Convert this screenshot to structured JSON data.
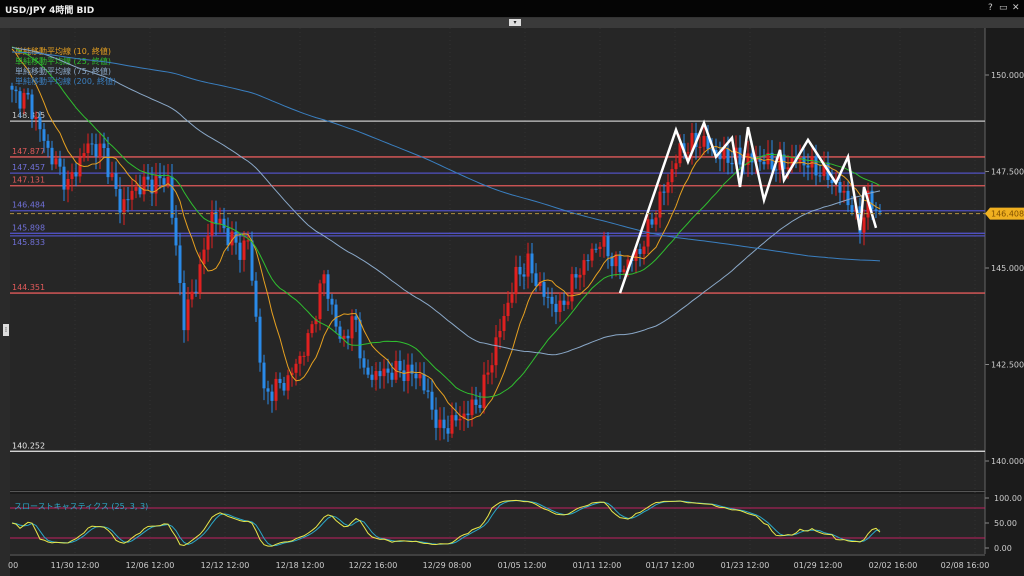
{
  "window": {
    "title": "USD/JPY 4時間 BID",
    "help": "?",
    "maximize": "▭",
    "close": "✕",
    "collapse": "▾",
    "handle": "⁞"
  },
  "legend": [
    {
      "label": "単純移動平均線 (10, 終値)",
      "period": 10,
      "color": "#e6a020"
    },
    {
      "label": "単純移動平均線 (25, 終値)",
      "period": 25,
      "color": "#2fbf2f"
    },
    {
      "label": "単純移動平均線 (75, 終値)",
      "period": 75,
      "color": "#8aa8c8"
    },
    {
      "label": "単純移動平均線 (200, 終値)",
      "period": 200,
      "color": "#3a7fc0"
    }
  ],
  "chart_data": {
    "type": "candlestick",
    "title": "USD/JPY 4時間 BID",
    "ylim": [
      139.5,
      151.2
    ],
    "y_ticks": [
      "150.000",
      "147.500",
      "145.000",
      "142.500",
      "140.000"
    ],
    "x_ticks": [
      "00",
      "11/30 12:00",
      "12/06 12:00",
      "12/12 12:00",
      "12/18 12:00",
      "12/22 16:00",
      "12/29 08:00",
      "01/05 12:00",
      "01/11 12:00",
      "01/17 12:00",
      "01/23 12:00",
      "01/29 12:00",
      "02/02 16:00",
      "02/08 16:00"
    ],
    "current_price": "146.408",
    "price_path_bar_price": [
      [
        0,
        149.5
      ],
      [
        4,
        149.35
      ],
      [
        9,
        148.05
      ],
      [
        14,
        147.15
      ],
      [
        19,
        148.2
      ],
      [
        23,
        148.0
      ],
      [
        27,
        146.6
      ],
      [
        32,
        147.15
      ],
      [
        39,
        147.3
      ],
      [
        43,
        143.65
      ],
      [
        47,
        144.95
      ],
      [
        50,
        146.4
      ],
      [
        57,
        145.45
      ],
      [
        59,
        145.7
      ],
      [
        63,
        141.7
      ],
      [
        69,
        142.1
      ],
      [
        74,
        143.1
      ],
      [
        78,
        144.8
      ],
      [
        82,
        143.1
      ],
      [
        86,
        143.65
      ],
      [
        88,
        142.2
      ],
      [
        97,
        142.35
      ],
      [
        102,
        142.2
      ],
      [
        107,
        140.8
      ],
      [
        113,
        141.2
      ],
      [
        117,
        141.6
      ],
      [
        122,
        143.4
      ],
      [
        126,
        144.8
      ],
      [
        129,
        145.1
      ],
      [
        133,
        144.3
      ],
      [
        137,
        143.9
      ],
      [
        141,
        144.8
      ],
      [
        147,
        145.7
      ],
      [
        152,
        144.95
      ],
      [
        157,
        145.45
      ],
      [
        162,
        146.75
      ],
      [
        167,
        148.05
      ],
      [
        172,
        148.3
      ],
      [
        177,
        147.9
      ],
      [
        182,
        147.8
      ],
      [
        187,
        147.8
      ],
      [
        192,
        147.65
      ],
      [
        197,
        147.8
      ],
      [
        204,
        147.4
      ],
      [
        209,
        146.75
      ],
      [
        212,
        146.1
      ],
      [
        214,
        146.75
      ],
      [
        217,
        146.4
      ]
    ],
    "horizontal_lines": [
      {
        "label": "148.805",
        "price": 148.805,
        "color": "#c8c8c8"
      },
      {
        "label": "147.877",
        "price": 147.877,
        "color": "#e05a5a"
      },
      {
        "label": "147.457",
        "price": 147.457,
        "color": "#5050c0"
      },
      {
        "label": "147.131",
        "price": 147.131,
        "color": "#e05a5a"
      },
      {
        "label": "146.484",
        "price": 146.484,
        "color": "#5050c0"
      },
      {
        "label": "145.898",
        "price": 145.898,
        "color": "#5050c0"
      },
      {
        "label": "145.833",
        "price": 145.833,
        "color": "#5050c0"
      },
      {
        "label": "144.351",
        "price": 144.351,
        "color": "#e05a5a"
      },
      {
        "label": "140.252",
        "price": 140.252,
        "color": "#e8e8e8"
      }
    ],
    "zigzag_bar_price": [
      [
        152,
        144.35
      ],
      [
        166,
        148.58
      ],
      [
        169,
        147.75
      ],
      [
        173,
        148.76
      ],
      [
        176,
        147.88
      ],
      [
        180,
        148.37
      ],
      [
        182,
        147.1
      ],
      [
        184,
        148.65
      ],
      [
        188,
        146.76
      ],
      [
        192,
        148.06
      ],
      [
        193,
        147.28
      ],
      [
        199,
        148.32
      ],
      [
        206,
        147.2
      ],
      [
        209,
        147.88
      ],
      [
        212,
        145.98
      ],
      [
        213,
        147.1
      ],
      [
        216,
        146.04
      ]
    ],
    "stochastic": {
      "label": "スローストキャスティクス (25, 3, 3)",
      "y_ticks": [
        "100.00",
        "50.00",
        "0.00"
      ],
      "levels": [
        80,
        20
      ],
      "k_color": "#e8e84a",
      "d_color": "#2aa8c8"
    },
    "colors": {
      "up": "#e02020",
      "down": "#2a8ae8"
    }
  }
}
